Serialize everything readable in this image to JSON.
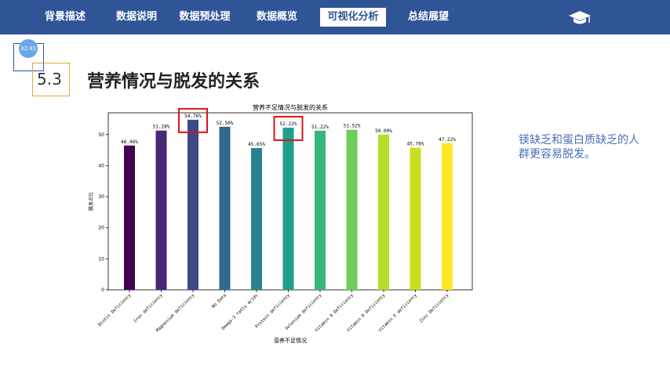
{
  "nav": {
    "items": [
      "背景描述",
      "数据说明",
      "数据预处理",
      "数据概览",
      "可视化分析",
      "总结展望"
    ],
    "active_index": 4,
    "logo_icon": "graduation-cap-icon"
  },
  "clock": {
    "time": "32:41"
  },
  "section": {
    "number": "5.3",
    "title": "营养情况与脱发的关系"
  },
  "note": {
    "text": "镁缺乏和蛋白质缺乏的人群更容易脱发。"
  },
  "colors": {
    "nav_bg": "#2f5597",
    "accent_box": "#e0a93a",
    "highlight": "#d9141b",
    "note_text": "#4a6fb5"
  },
  "chart_data": {
    "type": "bar",
    "title": "营养不足情况与脱发的关系",
    "xlabel": "营养不足情况",
    "ylabel": "脱发占比",
    "ylim": [
      0,
      57
    ],
    "yticks": [
      0,
      10,
      20,
      30,
      40,
      50
    ],
    "categories": [
      "Biotin Deficiency",
      "Iron deficiency",
      "Magnesium deficiency",
      "No Data",
      "Omega-3 fatty acids",
      "Protein deficiency",
      "Selenium deficiency",
      "Vitamin A Deficiency",
      "Vitamin D Deficiency",
      "Vitamin E deficiency",
      "Zinc Deficiency"
    ],
    "values": [
      46.46,
      51.28,
      54.76,
      52.5,
      45.65,
      52.22,
      51.22,
      51.52,
      50.0,
      45.78,
      47.22
    ],
    "labels": [
      "46.46%",
      "51.28%",
      "54.76%",
      "52.50%",
      "45.65%",
      "52.22%",
      "51.22%",
      "51.52%",
      "50.00%",
      "45.78%",
      "47.22%"
    ],
    "colors": [
      "#440154",
      "#482878",
      "#3e4989",
      "#31688e",
      "#26828e",
      "#1f9e89",
      "#35b779",
      "#6ece58",
      "#b5de2b",
      "#c8e020",
      "#fde725"
    ],
    "highlighted": [
      "Magnesium deficiency",
      "Protein deficiency"
    ],
    "grid": false
  }
}
